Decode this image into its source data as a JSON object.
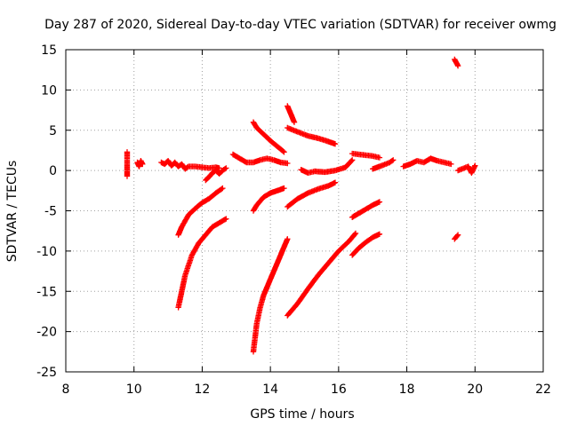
{
  "chart_data": {
    "type": "scatter",
    "title": "Day 287 of 2020, Sidereal Day-to-day VTEC variation (SDTVAR) for receiver owmg",
    "xlabel": "GPS time / hours",
    "ylabel": "SDTVAR / TECUs",
    "xlim": [
      8,
      22
    ],
    "ylim": [
      -25,
      15
    ],
    "xticks": [
      8,
      10,
      12,
      14,
      16,
      18,
      20,
      22
    ],
    "yticks": [
      -25,
      -20,
      -15,
      -10,
      -5,
      0,
      5,
      10,
      15
    ],
    "grid": true,
    "marker": "plus",
    "color": "#ff0000",
    "series": [
      {
        "name": "s1",
        "x": [
          9.8,
          9.8,
          9.8,
          9.8,
          9.8,
          9.8
        ],
        "y": [
          2.3,
          1.5,
          0.8,
          0.0,
          -0.7,
          -0.3
        ]
      },
      {
        "name": "s2",
        "x": [
          10.1,
          10.15,
          10.2,
          10.25
        ],
        "y": [
          1.0,
          0.5,
          1.2,
          0.8
        ]
      },
      {
        "name": "s3",
        "x": [
          10.8,
          10.9,
          11.0,
          11.1,
          11.2,
          11.3,
          11.4,
          11.5,
          11.6,
          11.8,
          12.0,
          12.2,
          12.4,
          12.5
        ],
        "y": [
          1.0,
          0.8,
          1.2,
          0.6,
          1.0,
          0.5,
          0.8,
          0.2,
          0.5,
          0.5,
          0.4,
          0.3,
          0.4,
          0.3
        ]
      },
      {
        "name": "s4",
        "x": [
          12.1,
          12.2,
          12.3,
          12.4,
          12.5,
          12.6,
          12.7
        ],
        "y": [
          -1.2,
          -0.8,
          -0.3,
          0.0,
          -0.4,
          0.0,
          0.3
        ]
      },
      {
        "name": "s5",
        "x": [
          11.3,
          11.4,
          11.6,
          11.8,
          12.0,
          12.2,
          12.4,
          12.6
        ],
        "y": [
          -8.0,
          -7.0,
          -5.5,
          -4.7,
          -4.0,
          -3.5,
          -2.8,
          -2.2
        ]
      },
      {
        "name": "s6",
        "x": [
          11.3,
          11.5,
          11.7,
          11.9,
          12.1,
          12.3,
          12.5,
          12.7
        ],
        "y": [
          -17.0,
          -13.0,
          -10.5,
          -9.0,
          -8.0,
          -7.0,
          -6.5,
          -6.0
        ]
      },
      {
        "name": "s7",
        "x": [
          12.9,
          13.1,
          13.3,
          13.5,
          13.7,
          13.9,
          14.1,
          14.3,
          14.5
        ],
        "y": [
          2.0,
          1.5,
          1.0,
          1.0,
          1.3,
          1.5,
          1.3,
          1.0,
          0.9
        ]
      },
      {
        "name": "s8",
        "x": [
          13.5,
          13.6,
          13.8,
          14.0,
          14.2,
          14.4
        ],
        "y": [
          6.0,
          5.3,
          4.5,
          3.7,
          3.0,
          2.3
        ]
      },
      {
        "name": "s9",
        "x": [
          13.5,
          13.6,
          13.8,
          14.0,
          14.2,
          14.4
        ],
        "y": [
          -5.0,
          -4.3,
          -3.3,
          -2.8,
          -2.5,
          -2.2
        ]
      },
      {
        "name": "s10",
        "x": [
          13.5,
          13.6,
          13.7,
          13.8,
          13.9,
          14.0,
          14.1,
          14.2,
          14.3,
          14.4,
          14.5
        ],
        "y": [
          -22.5,
          -19.0,
          -17.0,
          -15.5,
          -14.5,
          -13.5,
          -12.5,
          -11.5,
          -10.5,
          -9.5,
          -8.5
        ]
      },
      {
        "name": "s11",
        "x": [
          14.5,
          14.6,
          14.7
        ],
        "y": [
          8.0,
          7.0,
          6.0
        ]
      },
      {
        "name": "s12",
        "x": [
          14.5,
          14.8,
          15.1,
          15.4,
          15.7,
          15.9
        ],
        "y": [
          5.3,
          4.8,
          4.3,
          4.0,
          3.6,
          3.3
        ]
      },
      {
        "name": "s13",
        "x": [
          14.5,
          14.8,
          15.1,
          15.4,
          15.7,
          15.9
        ],
        "y": [
          -4.5,
          -3.5,
          -2.8,
          -2.3,
          -1.9,
          -1.5
        ]
      },
      {
        "name": "s14",
        "x": [
          14.5,
          14.8,
          15.1,
          15.4,
          15.7,
          16.0,
          16.3,
          16.5
        ],
        "y": [
          -18.0,
          -16.5,
          -14.7,
          -13.0,
          -11.5,
          -10.0,
          -8.8,
          -7.8
        ]
      },
      {
        "name": "s15",
        "x": [
          14.9,
          15.1,
          15.3,
          15.6,
          15.9,
          16.2,
          16.4
        ],
        "y": [
          0.1,
          -0.3,
          -0.1,
          -0.2,
          0.0,
          0.4,
          1.3
        ]
      },
      {
        "name": "s16",
        "x": [
          16.4,
          16.6,
          16.8,
          17.0,
          17.2
        ],
        "y": [
          2.1,
          2.0,
          1.9,
          1.8,
          1.6
        ]
      },
      {
        "name": "s17",
        "x": [
          16.4,
          16.6,
          16.8,
          17.0,
          17.2
        ],
        "y": [
          -5.8,
          -5.3,
          -4.8,
          -4.3,
          -3.9
        ]
      },
      {
        "name": "s18",
        "x": [
          16.4,
          16.6,
          16.8,
          17.0,
          17.2
        ],
        "y": [
          -10.5,
          -9.6,
          -8.9,
          -8.3,
          -7.9
        ]
      },
      {
        "name": "s19",
        "x": [
          17.0,
          17.2,
          17.5,
          17.6
        ],
        "y": [
          0.2,
          0.5,
          1.0,
          1.3
        ]
      },
      {
        "name": "s20",
        "x": [
          17.9,
          18.1,
          18.3,
          18.5,
          18.7,
          18.9,
          19.1,
          19.3
        ],
        "y": [
          0.5,
          0.8,
          1.2,
          1.0,
          1.5,
          1.2,
          1.0,
          0.8
        ]
      },
      {
        "name": "s21",
        "x": [
          19.4,
          19.5
        ],
        "y": [
          13.8,
          13.0
        ]
      },
      {
        "name": "s22",
        "x": [
          19.4,
          19.5
        ],
        "y": [
          -8.5,
          -8.0
        ]
      },
      {
        "name": "s23",
        "x": [
          19.5,
          19.8,
          19.9,
          20.0
        ],
        "y": [
          0.0,
          0.5,
          -0.3,
          0.6
        ]
      }
    ]
  }
}
